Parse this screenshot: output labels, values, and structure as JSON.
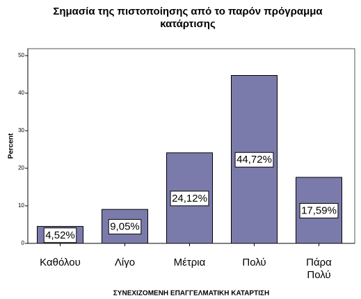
{
  "chart_data": {
    "type": "bar",
    "title": "Σημασία της πιστοποίησης από το παρόν πρόγραμμα κατάρτισης",
    "x_label": "ΣΥΝΕΧΙΖΟΜΕΝΗ ΕΠΑΓΓΕΛΜΑΤΙΚΗ ΚΑΤΑΡΤΙΣΗ",
    "y_label": "Percent",
    "categories": [
      "Καθόλου",
      "Λίγο",
      "Μέτρια",
      "Πολύ",
      "Πάρα Πολύ"
    ],
    "values": [
      4.52,
      9.05,
      24.12,
      44.72,
      17.59
    ],
    "value_labels": [
      "4,52%",
      "9,05%",
      "24,12%",
      "44,72%",
      "17,59%"
    ],
    "color": "#7b7bab",
    "ylim": [
      0,
      50
    ],
    "yticks": [
      0,
      10,
      20,
      30,
      40,
      50
    ]
  }
}
